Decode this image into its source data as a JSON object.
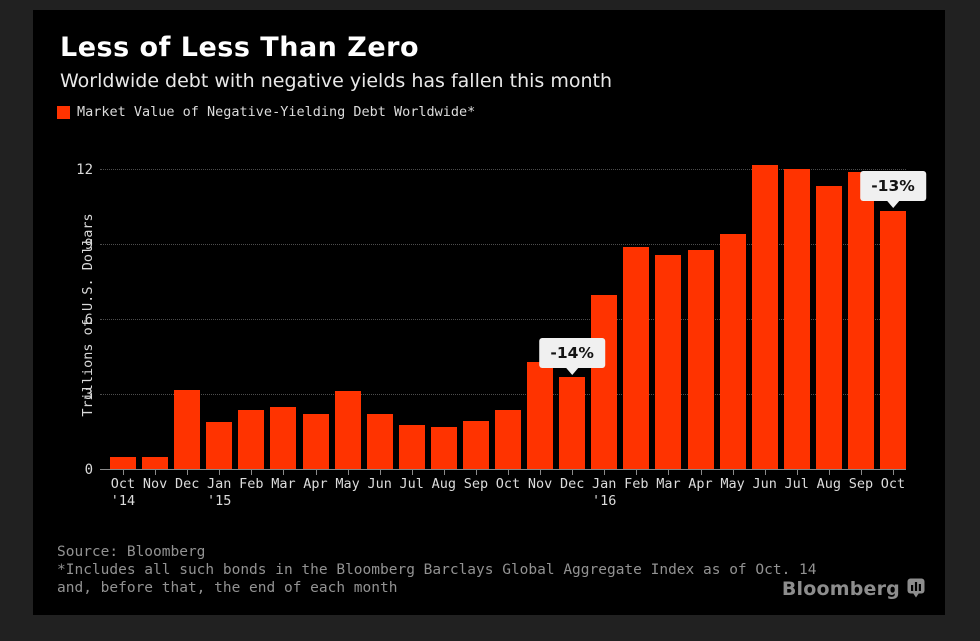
{
  "header": {
    "title": "Less of Less Than Zero",
    "subtitle": "Worldwide debt with negative yields has fallen this month"
  },
  "legend": {
    "label": "Market Value of Negative-Yielding Debt Worldwide*",
    "swatch_color": "#ff3300"
  },
  "chart_data": {
    "type": "bar",
    "categories": [
      "Oct",
      "Nov",
      "Dec",
      "Jan",
      "Feb",
      "Mar",
      "Apr",
      "May",
      "Jun",
      "Jul",
      "Aug",
      "Sep",
      "Oct",
      "Nov",
      "Dec",
      "Jan",
      "Feb",
      "Mar",
      "Apr",
      "May",
      "Jun",
      "Jul",
      "Aug",
      "Sep",
      "Oct"
    ],
    "year_labels": [
      {
        "index": 0,
        "label": "'14"
      },
      {
        "index": 3,
        "label": "'15"
      },
      {
        "index": 15,
        "label": "'16"
      }
    ],
    "values": [
      0.5,
      0.5,
      3.2,
      1.9,
      2.4,
      2.5,
      2.25,
      3.15,
      2.25,
      1.8,
      1.7,
      1.95,
      2.4,
      4.3,
      3.7,
      7.0,
      8.9,
      8.6,
      8.8,
      9.45,
      12.2,
      12.05,
      11.35,
      11.9,
      10.35
    ],
    "annotations": [
      {
        "bar_index": 14,
        "label": "-14%"
      },
      {
        "bar_index": 24,
        "label": "-13%"
      }
    ],
    "title": "Less of Less Than Zero",
    "xlabel": "",
    "ylabel": "Trillions of U.S. Dollars",
    "yticks": [
      0,
      3,
      6,
      9,
      12
    ],
    "ylim": [
      0,
      12.8
    ],
    "grid": "horizontal-dotted",
    "legend_position": "top-left",
    "bar_color": "#ff3300",
    "units": "trillion USD"
  },
  "footer": {
    "source": "Source: Bloomberg",
    "note_line1": "*Includes all such bonds in the Bloomberg Barclays Global Aggregate Index as of Oct. 14",
    "note_line2": "and, before that, the end of each month",
    "brand": "Bloomberg"
  }
}
